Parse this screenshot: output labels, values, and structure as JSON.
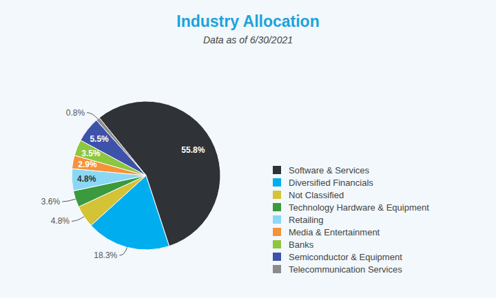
{
  "chart_data": {
    "type": "pie",
    "title": "Industry Allocation",
    "subtitle": "Data as of 6/30/2021",
    "categories": [
      "Software & Services",
      "Diversified Financials",
      "Not Classified",
      "Technology Hardware & Equipment",
      "Retailing",
      "Media & Entertainment",
      "Banks",
      "Semiconductor & Equipment",
      "Telecommunication Services"
    ],
    "values": [
      55.8,
      18.3,
      4.8,
      3.6,
      4.8,
      2.9,
      3.5,
      5.5,
      0.8
    ],
    "value_labels": [
      "55.8%",
      "18.3%",
      "4.8%",
      "3.6%",
      "4.8%",
      "2.9%",
      "3.5%",
      "5.5%",
      "0.8%"
    ],
    "colors": [
      "#2f3237",
      "#00adee",
      "#d4c237",
      "#3b9a3e",
      "#8ad8f5",
      "#f5923a",
      "#8dc63f",
      "#3d52a8",
      "#8b8b8b"
    ],
    "data_labels": true,
    "legend": "right"
  }
}
